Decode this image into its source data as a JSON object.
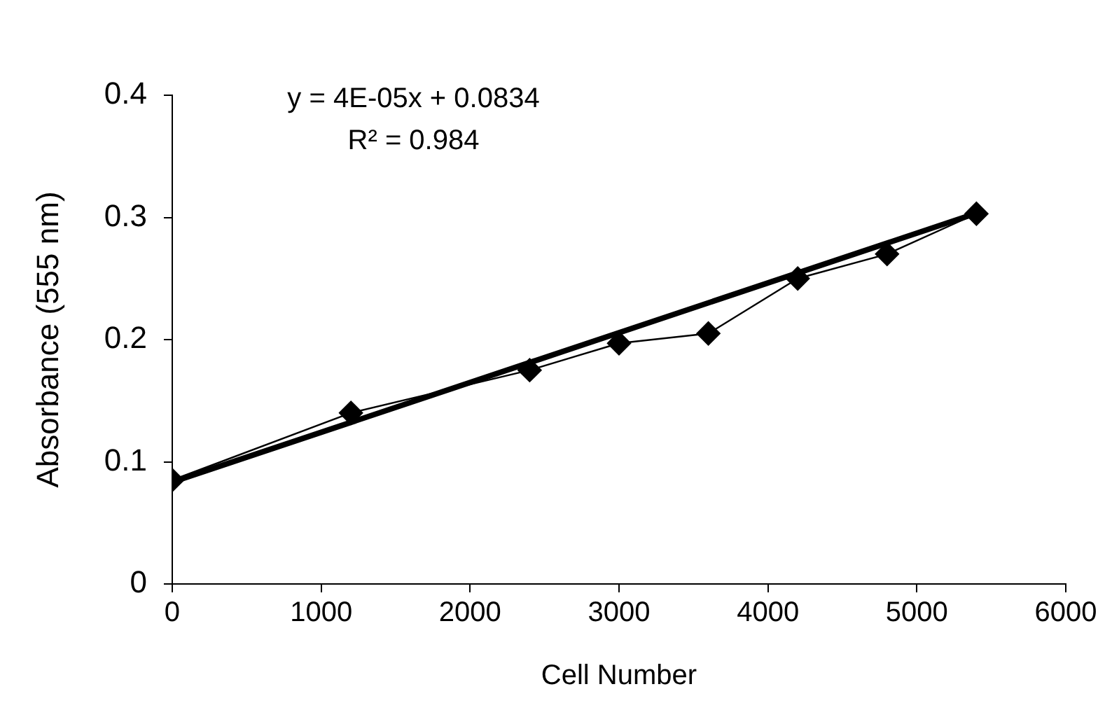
{
  "chart_data": {
    "type": "line",
    "xlabel": "Cell Number",
    "ylabel": "Absorbance (555 nm)",
    "annotations": [
      "y = 4E-05x + 0.0834",
      "R² = 0.984"
    ],
    "x": [
      0,
      1200,
      2400,
      3000,
      3600,
      4200,
      4800,
      5400
    ],
    "series": [
      {
        "color": "#000000",
        "values": [
          0.085,
          0.14,
          0.175,
          0.197,
          0.205,
          0.25,
          0.27,
          0.303
        ],
        "marker": "diamond"
      },
      {
        "type": "line",
        "color": "#000000",
        "x": [
          0,
          5400
        ],
        "values": [
          0.0834,
          0.3034
        ],
        "marker": "none"
      }
    ],
    "xlim": [
      0,
      6000
    ],
    "xticks": [
      0,
      1000,
      2000,
      3000,
      4000,
      5000,
      6000
    ],
    "ylim": [
      0,
      0.4
    ],
    "yticks": [
      0,
      0.1,
      0.2,
      0.3,
      0.4
    ],
    "grid": false,
    "legend": false,
    "line_style": "solid"
  }
}
